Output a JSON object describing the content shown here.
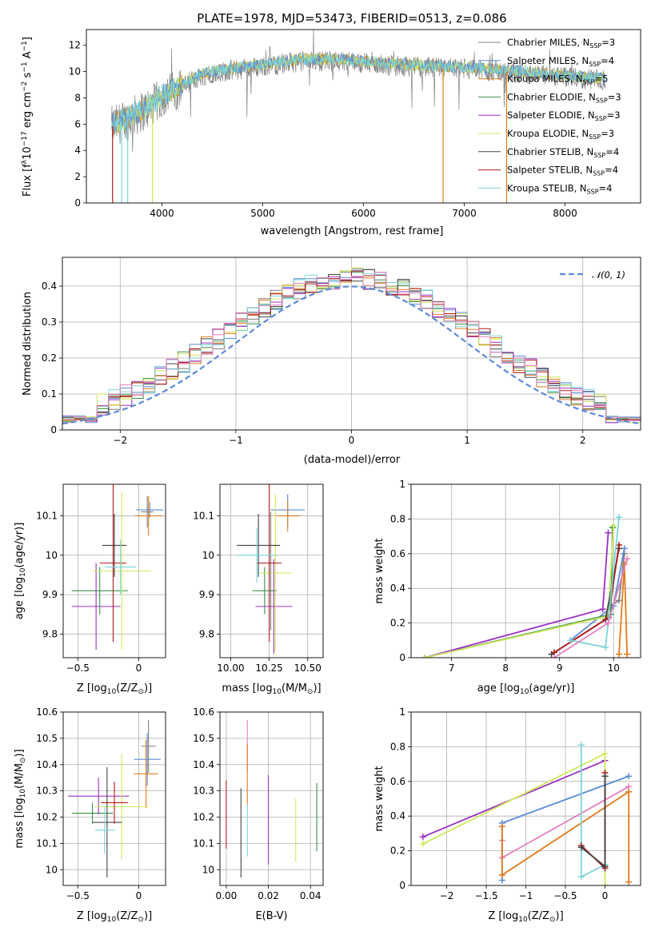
{
  "title": "PLATE=1978, MJD=53473, FIBERID=0513, z=0.086",
  "colors": {
    "Chabrier MILES": "#808080",
    "Salpeter MILES": "#5b8bd6",
    "Kroupa MILES": "#e07b1c",
    "Chabrier ELODIE": "#3b8f48",
    "Salpeter ELODIE": "#9b30c0",
    "Kroupa ELODIE": "#cfe85a",
    "Chabrier STELIB": "#444444",
    "Salpeter STELIB": "#b01818",
    "Kroupa STELIB": "#7ad6d8",
    "Extra pink": "#e57fbf",
    "Normal curve": "#5b8bd6"
  },
  "chart_data": [
    {
      "id": "spectrum",
      "type": "line",
      "xlabel": "wavelength [Angstrom, rest frame]",
      "ylabel": "Flux [f$_\\lambda$10$^{-17}$ erg cm$^{-2}$ s$^{-1}$ A$^{-1}$]",
      "ylabel_parts": [
        "Flux [f",
        "λ",
        "10",
        "−17",
        " erg cm",
        "−2",
        " s",
        "−1",
        " A",
        "−1",
        "]"
      ],
      "xlim": [
        3250,
        8750
      ],
      "ylim": [
        0,
        13.2
      ],
      "xticks": [
        4000,
        5000,
        6000,
        7000,
        8000
      ],
      "yticks": [
        0,
        2,
        4,
        6,
        8,
        10,
        12
      ],
      "legend_position": "right",
      "legend": [
        {
          "name": "Chabrier MILES",
          "n": "3"
        },
        {
          "name": "Salpeter MILES",
          "n": "4"
        },
        {
          "name": "Kroupa MILES",
          "n": "5"
        },
        {
          "name": "Chabrier ELODIE",
          "n": "3"
        },
        {
          "name": "Salpeter ELODIE",
          "n": "3"
        },
        {
          "name": "Kroupa ELODIE",
          "n": "3"
        },
        {
          "name": "Chabrier STELIB",
          "n": "4"
        },
        {
          "name": "Salpeter STELIB",
          "n": "4"
        },
        {
          "name": "Kroupa STELIB",
          "n": "4"
        }
      ],
      "continuum": {
        "x": [
          3500,
          3700,
          3900,
          4000,
          4200,
          4400,
          4600,
          5000,
          5400,
          5800,
          6200,
          6600,
          7000,
          7400,
          7800,
          8200,
          8400
        ],
        "y": [
          5.8,
          6.5,
          7.4,
          8.0,
          8.9,
          9.7,
          10.0,
          10.4,
          10.8,
          10.8,
          10.5,
          10.3,
          10.2,
          10.0,
          9.7,
          9.4,
          9.4
        ]
      }
    },
    {
      "id": "residuals",
      "type": "histogram",
      "xlabel": "(data-model)/error",
      "ylabel": "Normed distribution",
      "xlim": [
        -2.5,
        2.5
      ],
      "ylim": [
        0,
        0.48
      ],
      "xticks": [
        -2,
        -1,
        0,
        1,
        2
      ],
      "yticks": [
        0.0,
        0.1,
        0.2,
        0.3,
        0.4
      ],
      "grid": true,
      "legend": "𝒩(0, 1)",
      "legend_position": "top-right",
      "normal": {
        "mean": 0,
        "sigma": 1
      }
    },
    {
      "id": "age_vs_Z",
      "type": "errorbar",
      "xlabel_parts": [
        "Z [log",
        "10",
        "(Z/Z",
        "⊙",
        ")]"
      ],
      "ylabel_parts": [
        "age  [log",
        "10",
        "(age/yr)]"
      ],
      "xlim": [
        -0.62,
        0.22
      ],
      "ylim": [
        9.74,
        10.18
      ],
      "xticks": [
        -0.5,
        0.0
      ],
      "yticks": [
        9.8,
        9.9,
        10.0,
        10.1
      ],
      "grid": true,
      "points": [
        {
          "model": "Chabrier MILES",
          "x": 0.07,
          "y": 10.11,
          "xerr": 0.05,
          "yerr": 0.04
        },
        {
          "model": "Salpeter MILES",
          "x": 0.09,
          "y": 10.115,
          "xerr": 0.11,
          "yerr": 0.02
        },
        {
          "model": "Kroupa MILES",
          "x": 0.08,
          "y": 10.1,
          "xerr": 0.11,
          "yerr": 0.05
        },
        {
          "model": "Chabrier ELODIE",
          "x": -0.32,
          "y": 9.91,
          "xerr": 0.23,
          "yerr": 0.06
        },
        {
          "model": "Salpeter ELODIE",
          "x": -0.35,
          "y": 9.87,
          "xerr": 0.2,
          "yerr": 0.11
        },
        {
          "model": "Kroupa ELODIE",
          "x": -0.14,
          "y": 9.96,
          "xerr": 0.24,
          "yerr": 0.2
        },
        {
          "model": "Chabrier STELIB",
          "x": -0.2,
          "y": 10.025,
          "xerr": 0.1,
          "yerr": 0.08
        },
        {
          "model": "Salpeter STELIB",
          "x": -0.21,
          "y": 9.98,
          "xerr": 0.11,
          "yerr": 0.2
        },
        {
          "model": "Kroupa STELIB",
          "x": -0.15,
          "y": 9.97,
          "xerr": 0.13,
          "yerr": 0.07
        }
      ]
    },
    {
      "id": "age_vs_mass",
      "type": "errorbar",
      "xlabel_parts": [
        "mass [log",
        "10",
        "(M/M",
        "⊙",
        ")]"
      ],
      "ylabel": "",
      "xlim": [
        9.93,
        10.6
      ],
      "ylim": [
        9.74,
        10.18
      ],
      "xticks": [
        10.0,
        10.25,
        10.5
      ],
      "yticks": [
        9.8,
        9.9,
        10.0,
        10.1
      ],
      "xticklabels": [
        "10.00",
        "10.25",
        "10.50"
      ],
      "grid": true,
      "points": [
        {
          "model": "Chabrier MILES",
          "x": 10.26,
          "y": 9.96,
          "xerr": 0.0,
          "yerr": 0.15
        },
        {
          "model": "Salpeter MILES",
          "x": 10.37,
          "y": 10.115,
          "xerr": 0.11,
          "yerr": 0.04
        },
        {
          "model": "Kroupa MILES",
          "x": 10.37,
          "y": 10.1,
          "xerr": 0.08,
          "yerr": 0.04
        },
        {
          "model": "Chabrier ELODIE",
          "x": 10.22,
          "y": 9.91,
          "xerr": 0.08,
          "yerr": 0.06
        },
        {
          "model": "Salpeter ELODIE",
          "x": 10.28,
          "y": 9.87,
          "xerr": 0.12,
          "yerr": 0.12
        },
        {
          "model": "Kroupa ELODIE",
          "x": 10.29,
          "y": 9.955,
          "xerr": 0.1,
          "yerr": 0.2
        },
        {
          "model": "Chabrier STELIB",
          "x": 10.18,
          "y": 10.025,
          "xerr": 0.14,
          "yerr": 0.08
        },
        {
          "model": "Salpeter STELIB",
          "x": 10.25,
          "y": 9.98,
          "xerr": 0.08,
          "yerr": 0.2
        },
        {
          "model": "Kroupa STELIB",
          "x": 10.17,
          "y": 10.0,
          "xerr": 0.13,
          "yerr": 0.07
        }
      ]
    },
    {
      "id": "weight_vs_age",
      "type": "line",
      "xlabel_parts": [
        "age  [log",
        "10",
        "(age/yr)]"
      ],
      "ylabel": "mass weight",
      "xlim": [
        6.25,
        10.5
      ],
      "ylim": [
        0,
        1
      ],
      "xticks": [
        7,
        8,
        9,
        10
      ],
      "yticks": [
        0.0,
        0.2,
        0.4,
        0.6,
        0.8,
        1.0
      ],
      "grid": true,
      "series": [
        {
          "model": "Chabrier MILES",
          "x": [
            9.95,
            10.1,
            10.2
          ],
          "y": [
            0.3,
            0.33,
            0.6
          ]
        },
        {
          "model": "Salpeter MILES",
          "x": [
            9.2,
            10.0,
            10.2
          ],
          "y": [
            0.1,
            0.3,
            0.63
          ]
        },
        {
          "model": "Kroupa MILES",
          "x": [
            10.1,
            10.2,
            10.25
          ],
          "y": [
            0.02,
            0.54,
            0.02
          ]
        },
        {
          "model": "Chabrier ELODIE",
          "x": [
            6.5,
            9.95,
            9.98
          ],
          "y": [
            0.0,
            0.25,
            0.75
          ]
        },
        {
          "model": "Salpeter ELODIE",
          "x": [
            6.5,
            9.8,
            9.9
          ],
          "y": [
            0.0,
            0.28,
            0.72
          ]
        },
        {
          "model": "Kroupa ELODIE",
          "x": [
            6.5,
            9.9,
            10.0
          ],
          "y": [
            0.0,
            0.24,
            0.76
          ]
        },
        {
          "model": "Chabrier STELIB",
          "x": [
            8.85,
            9.85,
            10.1
          ],
          "y": [
            0.02,
            0.22,
            0.63
          ]
        },
        {
          "model": "Salpeter STELIB",
          "x": [
            8.9,
            9.9,
            10.1
          ],
          "y": [
            0.03,
            0.23,
            0.65
          ]
        },
        {
          "model": "Kroupa STELIB",
          "x": [
            9.2,
            9.85,
            10.1
          ],
          "y": [
            0.1,
            0.06,
            0.81
          ]
        },
        {
          "model": "Extra pink",
          "x": [
            8.9,
            9.9,
            10.25
          ],
          "y": [
            0.0,
            0.2,
            0.57
          ]
        }
      ]
    },
    {
      "id": "mass_vs_Z",
      "type": "errorbar",
      "xlabel_parts": [
        "Z [log",
        "10",
        "(Z/Z",
        "⊙",
        ")]"
      ],
      "ylabel_parts": [
        "mass [log",
        "10",
        "(M/M",
        "⊙",
        ")]"
      ],
      "xlim": [
        -0.62,
        0.22
      ],
      "ylim": [
        9.94,
        10.6
      ],
      "xticks": [
        -0.5,
        0.0
      ],
      "yticks": [
        10.0,
        10.1,
        10.2,
        10.3,
        10.4,
        10.5,
        10.6
      ],
      "grid": true,
      "points": [
        {
          "model": "Chabrier MILES",
          "x": 0.08,
          "y": 10.47,
          "xerr": 0.06,
          "yerr": 0.1
        },
        {
          "model": "Salpeter MILES",
          "x": 0.07,
          "y": 10.42,
          "xerr": 0.11,
          "yerr": 0.1
        },
        {
          "model": "Kroupa MILES",
          "x": 0.06,
          "y": 10.365,
          "xerr": 0.1,
          "yerr": 0.13
        },
        {
          "model": "Chabrier ELODIE",
          "x": -0.38,
          "y": 10.215,
          "xerr": 0.17,
          "yerr": 0.04
        },
        {
          "model": "Salpeter ELODIE",
          "x": -0.33,
          "y": 10.28,
          "xerr": 0.25,
          "yerr": 0.07
        },
        {
          "model": "Kroupa ELODIE",
          "x": -0.14,
          "y": 10.24,
          "xerr": 0.22,
          "yerr": 0.2
        },
        {
          "model": "Chabrier STELIB",
          "x": -0.26,
          "y": 10.18,
          "xerr": 0.12,
          "yerr": 0.21
        },
        {
          "model": "Salpeter STELIB",
          "x": -0.2,
          "y": 10.255,
          "xerr": 0.11,
          "yerr": 0.08
        },
        {
          "model": "Kroupa STELIB",
          "x": -0.28,
          "y": 10.15,
          "xerr": 0.08,
          "yerr": 0.09
        }
      ]
    },
    {
      "id": "mass_vs_ebv",
      "type": "errorbar",
      "xlabel": "E(B-V)",
      "ylabel": "",
      "xlim": [
        -0.003,
        0.046
      ],
      "ylim": [
        9.94,
        10.6
      ],
      "xticks": [
        0.0,
        0.02,
        0.04
      ],
      "yticks": [
        10.0,
        10.1,
        10.2,
        10.3,
        10.4,
        10.5,
        10.6
      ],
      "xticklabels": [
        "0.00",
        "0.02",
        "0.04"
      ],
      "grid": true,
      "points": [
        {
          "model": "Salpeter STELIB",
          "x": 0.0,
          "y": 10.21,
          "yerr": 0.13
        },
        {
          "model": "Chabrier STELIB",
          "x": 0.007,
          "y": 10.14,
          "yerr": 0.17
        },
        {
          "model": "Extra pink",
          "x": 0.01,
          "y": 10.47,
          "yerr": 0.1
        },
        {
          "model": "Kroupa MILES",
          "x": 0.01,
          "y": 10.36,
          "yerr": 0.12
        },
        {
          "model": "Kroupa STELIB",
          "x": 0.01,
          "y": 10.15,
          "yerr": 0.1
        },
        {
          "model": "Salpeter ELODIE",
          "x": 0.02,
          "y": 10.19,
          "yerr": 0.17
        },
        {
          "model": "Kroupa ELODIE",
          "x": 0.033,
          "y": 10.15,
          "yerr": 0.12
        },
        {
          "model": "Chabrier ELODIE",
          "x": 0.043,
          "y": 10.2,
          "yerr": 0.13
        }
      ]
    },
    {
      "id": "weight_vs_Z",
      "type": "line",
      "xlabel_parts": [
        "Z [log",
        "10",
        "(Z/Z",
        "⊙",
        ")]"
      ],
      "ylabel": "mass weight",
      "xlim": [
        -2.45,
        0.45
      ],
      "ylim": [
        0,
        1
      ],
      "xticks": [
        -2.0,
        -1.5,
        -1.0,
        -0.5,
        0.0
      ],
      "yticks": [
        0.0,
        0.2,
        0.4,
        0.6,
        0.8,
        1.0
      ],
      "grid": true,
      "series": [
        {
          "model": "Salpeter ELODIE",
          "x": [
            -2.3,
            0.0
          ],
          "y": [
            0.28,
            0.72
          ]
        },
        {
          "model": "Kroupa ELODIE",
          "x": [
            -2.3,
            0.0,
            0.0
          ],
          "y": [
            0.24,
            0.76,
            0.0
          ]
        },
        {
          "model": "Salpeter MILES",
          "x": [
            0.3,
            -1.3,
            -1.3
          ],
          "y": [
            0.63,
            0.36,
            0.03
          ]
        },
        {
          "model": "Extra pink",
          "x": [
            0.3,
            -1.3,
            -1.3
          ],
          "y": [
            0.57,
            0.16,
            0.26
          ]
        },
        {
          "model": "Kroupa MILES",
          "x": [
            0.3,
            0.3,
            -1.3,
            -1.3
          ],
          "y": [
            0.02,
            0.54,
            0.06,
            0.34
          ]
        },
        {
          "model": "Kroupa STELIB",
          "x": [
            -0.3,
            -0.3,
            0.0
          ],
          "y": [
            0.81,
            0.05,
            0.12
          ]
        },
        {
          "model": "Salpeter STELIB",
          "x": [
            -0.3,
            0.0,
            0.0
          ],
          "y": [
            0.23,
            0.1,
            0.65
          ]
        },
        {
          "model": "Chabrier STELIB",
          "x": [
            -0.3,
            0.0,
            0.0
          ],
          "y": [
            0.22,
            0.11,
            0.63
          ]
        }
      ]
    }
  ]
}
